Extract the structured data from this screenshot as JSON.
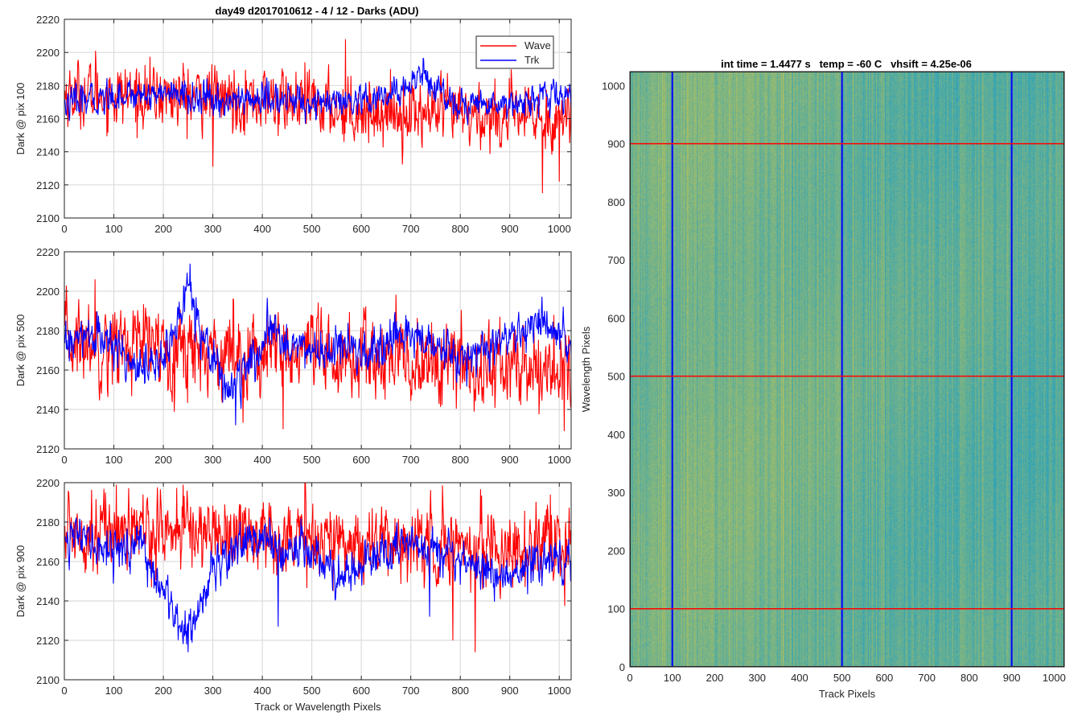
{
  "figure_title": "day49 d2017010612 - 4 / 12 - Darks (ADU)",
  "colors": {
    "wave": "#ff0000",
    "trk": "#0000ff",
    "grid": "#dcdcdc",
    "heat_low": "#1f9fc4",
    "heat_high": "#b8c25a"
  },
  "chart_data": [
    {
      "type": "line",
      "ylabel": "Dark @ pix 100",
      "xlabel": "",
      "xlim": [
        0,
        1024
      ],
      "ylim": [
        2100,
        2220
      ],
      "xticks": [
        "0",
        "100",
        "200",
        "300",
        "400",
        "500",
        "600",
        "700",
        "800",
        "900",
        "1000"
      ],
      "yticks": [
        "2100",
        "2120",
        "2140",
        "2160",
        "2180",
        "2200",
        "2220"
      ],
      "grid": true,
      "legend": {
        "placement": "top-right",
        "entries": [
          "Wave",
          "Trk"
        ]
      },
      "series": [
        {
          "name": "Wave",
          "color": "#ff0000",
          "mean": 2172,
          "noise": 9,
          "trend": [
            [
              0,
              2175
            ],
            [
              300,
              2173
            ],
            [
              450,
              2170
            ],
            [
              600,
              2165
            ],
            [
              800,
              2162
            ],
            [
              1024,
              2160
            ]
          ],
          "spikes": [
            [
              63,
              2201
            ],
            [
              300,
              2131
            ],
            [
              568,
              2208
            ],
            [
              966,
              2115
            ],
            [
              1000,
              2122
            ]
          ]
        },
        {
          "name": "Trk",
          "color": "#0000ff",
          "mean": 2172,
          "noise": 4.5,
          "trend": [
            [
              0,
              2168
            ],
            [
              100,
              2174
            ],
            [
              200,
              2176
            ],
            [
              300,
              2170
            ],
            [
              400,
              2172
            ],
            [
              500,
              2170
            ],
            [
              600,
              2168
            ],
            [
              680,
              2176
            ],
            [
              720,
              2188
            ],
            [
              760,
              2176
            ],
            [
              800,
              2168
            ],
            [
              900,
              2170
            ],
            [
              1024,
              2174
            ]
          ],
          "spikes": []
        }
      ]
    },
    {
      "type": "line",
      "ylabel": "Dark @ pix 500",
      "xlabel": "",
      "xlim": [
        0,
        1024
      ],
      "ylim": [
        2120,
        2220
      ],
      "xticks": [
        "0",
        "100",
        "200",
        "300",
        "400",
        "500",
        "600",
        "700",
        "800",
        "900",
        "1000"
      ],
      "yticks": [
        "2120",
        "2140",
        "2160",
        "2180",
        "2200",
        "2220"
      ],
      "grid": true,
      "series": [
        {
          "name": "Wave",
          "color": "#ff0000",
          "mean": 2170,
          "noise": 10,
          "trend": [
            [
              0,
              2175
            ],
            [
              200,
              2172
            ],
            [
              400,
              2168
            ],
            [
              600,
              2165
            ],
            [
              800,
              2162
            ],
            [
              1024,
              2160
            ]
          ],
          "spikes": [
            [
              62,
              2206
            ],
            [
              442,
              2130
            ],
            [
              1010,
              2129
            ]
          ]
        },
        {
          "name": "Trk",
          "color": "#0000ff",
          "mean": 2170,
          "noise": 5,
          "trend": [
            [
              0,
              2172
            ],
            [
              60,
              2178
            ],
            [
              120,
              2168
            ],
            [
              180,
              2160
            ],
            [
              220,
              2175
            ],
            [
              250,
              2205
            ],
            [
              280,
              2178
            ],
            [
              330,
              2150
            ],
            [
              370,
              2160
            ],
            [
              420,
              2180
            ],
            [
              470,
              2172
            ],
            [
              520,
              2168
            ],
            [
              560,
              2172
            ],
            [
              620,
              2166
            ],
            [
              700,
              2180
            ],
            [
              750,
              2170
            ],
            [
              800,
              2165
            ],
            [
              900,
              2175
            ],
            [
              960,
              2185
            ],
            [
              1024,
              2170
            ]
          ],
          "spikes": [
            [
              254,
              2214
            ],
            [
              346,
              2132
            ]
          ]
        }
      ]
    },
    {
      "type": "line",
      "ylabel": "Dark @ pix 900",
      "xlabel": "Track or Wavelength Pixels",
      "xlim": [
        0,
        1024
      ],
      "ylim": [
        2100,
        2200
      ],
      "xticks": [
        "0",
        "100",
        "200",
        "300",
        "400",
        "500",
        "600",
        "700",
        "800",
        "900",
        "1000"
      ],
      "yticks": [
        "2100",
        "2120",
        "2140",
        "2160",
        "2180",
        "2200"
      ],
      "grid": true,
      "series": [
        {
          "name": "Wave",
          "color": "#ff0000",
          "mean": 2172,
          "noise": 9,
          "trend": [
            [
              0,
              2176
            ],
            [
              200,
              2176
            ],
            [
              400,
              2174
            ],
            [
              600,
              2170
            ],
            [
              800,
              2168
            ],
            [
              1024,
              2166
            ]
          ],
          "spikes": [
            [
              105,
              2199
            ],
            [
              240,
              2199
            ],
            [
              785,
              2120
            ],
            [
              830,
              2114
            ]
          ]
        },
        {
          "name": "Trk",
          "color": "#0000ff",
          "mean": 2160,
          "noise": 5,
          "trend": [
            [
              0,
              2175
            ],
            [
              60,
              2168
            ],
            [
              120,
              2166
            ],
            [
              160,
              2168
            ],
            [
              200,
              2142
            ],
            [
              250,
              2124
            ],
            [
              300,
              2156
            ],
            [
              350,
              2170
            ],
            [
              400,
              2172
            ],
            [
              440,
              2162
            ],
            [
              480,
              2170
            ],
            [
              520,
              2162
            ],
            [
              560,
              2150
            ],
            [
              620,
              2162
            ],
            [
              700,
              2168
            ],
            [
              770,
              2168
            ],
            [
              820,
              2158
            ],
            [
              900,
              2152
            ],
            [
              950,
              2160
            ],
            [
              1024,
              2164
            ]
          ],
          "spikes": [
            [
              250,
              2114
            ],
            [
              432,
              2127
            ],
            [
              738,
              2132
            ]
          ]
        }
      ]
    },
    {
      "type": "heatmap",
      "title": "int time = 1.4477 s   temp = -60 C   vhsift = 4.25e-06",
      "xlabel": "Track Pixels",
      "ylabel": "Wavelength Pixels",
      "xlim": [
        0,
        1024
      ],
      "ylim": [
        0,
        1024
      ],
      "xticks": [
        "0",
        "100",
        "200",
        "300",
        "400",
        "500",
        "600",
        "700",
        "800",
        "900",
        "1000"
      ],
      "yticks": [
        "0",
        "100",
        "200",
        "300",
        "400",
        "500",
        "600",
        "700",
        "800",
        "900",
        "1000"
      ],
      "vertical_markers": {
        "color": "#0000ff",
        "x": [
          100,
          500,
          900
        ]
      },
      "horizontal_markers": {
        "color": "#ff0000",
        "y": [
          100,
          500,
          900
        ]
      }
    }
  ]
}
